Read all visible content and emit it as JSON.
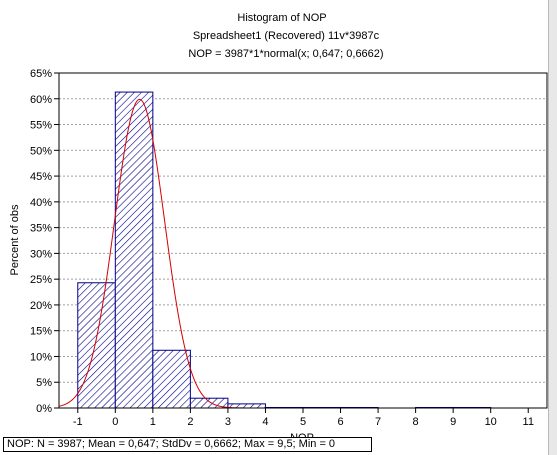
{
  "chart_data": {
    "type": "bar",
    "title": "Histogram of NOP",
    "subtitle": "Spreadsheet1  (Recovered) 11v*3987c",
    "formula": "NOP = 3987*1*normal(x; 0,647; 0,6662)",
    "xlabel": "NOP",
    "ylabel": "Percent of obs",
    "xlim": [
      -1.5,
      11.5
    ],
    "ylim": [
      0,
      65
    ],
    "xticks": [
      -1,
      0,
      1,
      2,
      3,
      4,
      5,
      6,
      7,
      8,
      9,
      10,
      11
    ],
    "xtick_labels": [
      "-1",
      "0",
      "1",
      "2",
      "3",
      "4",
      "5",
      "6",
      "7",
      "8",
      "9",
      "10",
      "11"
    ],
    "yticks": [
      0,
      5,
      10,
      15,
      20,
      25,
      30,
      35,
      40,
      45,
      50,
      55,
      60,
      65
    ],
    "ytick_labels": [
      "0%",
      "5%",
      "10%",
      "15%",
      "20%",
      "25%",
      "30%",
      "35%",
      "40%",
      "45%",
      "50%",
      "55%",
      "60%",
      "65%"
    ],
    "bins": [
      {
        "from": -1,
        "to": 0,
        "value": 24.3
      },
      {
        "from": 0,
        "to": 1,
        "value": 61.3
      },
      {
        "from": 1,
        "to": 2,
        "value": 11.2
      },
      {
        "from": 2,
        "to": 3,
        "value": 1.9
      },
      {
        "from": 3,
        "to": 4,
        "value": 0.8
      },
      {
        "from": 4,
        "to": 5,
        "value": 0.1
      },
      {
        "from": 5,
        "to": 6,
        "value": 0.1
      },
      {
        "from": 6,
        "to": 7,
        "value": 0.1
      },
      {
        "from": 8,
        "to": 9,
        "value": 0.1
      },
      {
        "from": 9,
        "to": 10,
        "value": 0.1
      }
    ],
    "normal_fit": {
      "mean": 0.647,
      "stddev": 0.6662,
      "peak_percent": 59.9
    },
    "grid": true,
    "colors": {
      "bar_stroke": "#00008b",
      "hatch": "#00008b",
      "curve": "#d40000",
      "grid": "#a0a0a0"
    }
  },
  "stats_box": "NOP:  N = 3987; Mean = 0,647; StdDv = 0,6662; Max = 9,5; Min = 0"
}
